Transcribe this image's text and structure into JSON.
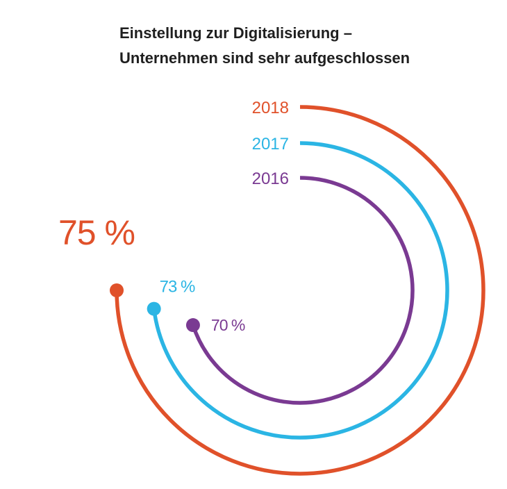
{
  "chart_data": {
    "type": "radial-bar",
    "title_line1": "Einstellung zur Digitalisierung –",
    "title_line2": "Unternehmen sind sehr aufgeschlossen",
    "unit": "%",
    "max": 100,
    "legend_placement": "top, at start of each arc",
    "series": [
      {
        "name": "2018",
        "value": 75,
        "label": "75 %",
        "color": "#e0512a"
      },
      {
        "name": "2017",
        "value": 73,
        "label": "73 %",
        "color": "#2bb5e4"
      },
      {
        "name": "2016",
        "value": 70,
        "label": "70 %",
        "color": "#7a3a92"
      }
    ]
  }
}
